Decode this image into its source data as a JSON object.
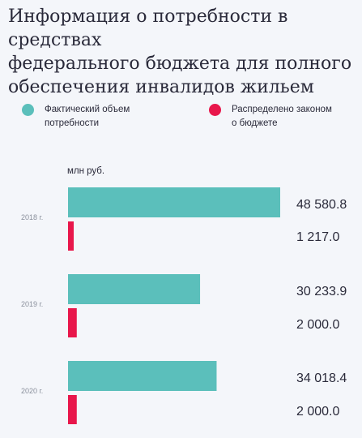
{
  "title_lines": [
    "Информация о потребности в средствах",
    "федерального бюджета для полного",
    "обеспечения инвалидов жильем"
  ],
  "legend": [
    {
      "lines": [
        "Фактический объем",
        "потребности"
      ],
      "color": "#5bbfbb"
    },
    {
      "lines": [
        "Распределено законом",
        "о бюджете"
      ],
      "color": "#e8174b"
    }
  ],
  "chart_data": {
    "type": "bar",
    "orientation": "horizontal",
    "unit_label": "млн руб.",
    "categories": [
      "2018 г.",
      "2019 г.",
      "2020 г."
    ],
    "series": [
      {
        "name": "Фактический объем потребности",
        "color": "#5bbfbb",
        "values": [
          48580.8,
          30233.9,
          34018.4
        ],
        "labels": [
          "48 580.8",
          "30 233.9",
          "34 018.4"
        ]
      },
      {
        "name": "Распределено законом о бюджете",
        "color": "#e8174b",
        "values": [
          1217.0,
          2000.0,
          2000.0
        ],
        "labels": [
          "1 217.0",
          "2 000.0",
          "2 000.0"
        ]
      }
    ],
    "xlim": [
      0,
      48580.8
    ]
  }
}
